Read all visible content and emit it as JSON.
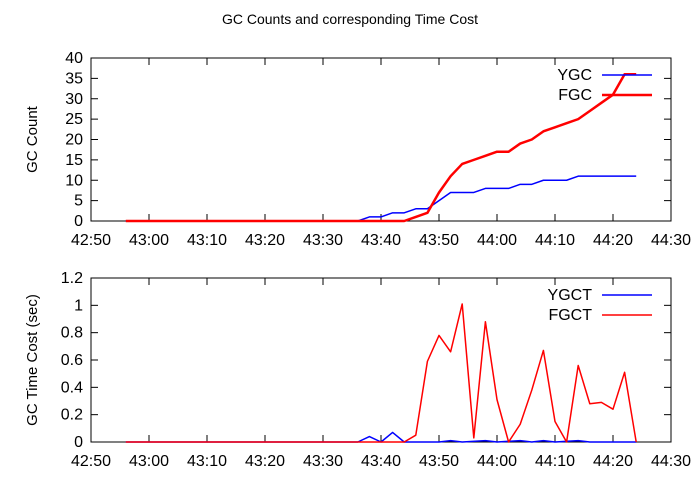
{
  "title": "GC Counts and corresponding Time Cost",
  "colors": {
    "young": "#0000ff",
    "full": "#ff0000",
    "axis": "#000000",
    "background": "#ffffff"
  },
  "chart_data": [
    {
      "type": "line",
      "ylabel": "GC Count",
      "xlabel": "",
      "xlim": [
        "42:50",
        "44:30"
      ],
      "ylim": [
        0,
        40
      ],
      "grid": false,
      "legend_position": "top-right",
      "x_ticks": [
        "42:50",
        "43:00",
        "43:10",
        "43:20",
        "43:30",
        "43:40",
        "43:50",
        "44:00",
        "44:10",
        "44:20",
        "44:30"
      ],
      "y_ticks": [
        "0",
        "5",
        "10",
        "15",
        "20",
        "25",
        "30",
        "35",
        "40"
      ],
      "series": [
        {
          "name": "YGC",
          "color": "#0000ff",
          "points": [
            [
              "42:56",
              0
            ],
            [
              "43:36",
              0
            ],
            [
              "43:38",
              1
            ],
            [
              "43:40",
              1
            ],
            [
              "43:42",
              2
            ],
            [
              "43:44",
              2
            ],
            [
              "43:46",
              3
            ],
            [
              "43:48",
              3
            ],
            [
              "43:50",
              5
            ],
            [
              "43:52",
              7
            ],
            [
              "43:56",
              7
            ],
            [
              "43:58",
              8
            ],
            [
              "44:02",
              8
            ],
            [
              "44:04",
              9
            ],
            [
              "44:06",
              9
            ],
            [
              "44:08",
              10
            ],
            [
              "44:12",
              10
            ],
            [
              "44:14",
              11
            ],
            [
              "44:24",
              11
            ]
          ]
        },
        {
          "name": "FGC",
          "color": "#ff0000",
          "points": [
            [
              "42:56",
              0
            ],
            [
              "43:44",
              0
            ],
            [
              "43:46",
              1
            ],
            [
              "43:48",
              2
            ],
            [
              "43:50",
              7
            ],
            [
              "43:52",
              11
            ],
            [
              "43:54",
              14
            ],
            [
              "43:56",
              15
            ],
            [
              "43:58",
              16
            ],
            [
              "44:00",
              17
            ],
            [
              "44:02",
              17
            ],
            [
              "44:04",
              19
            ],
            [
              "44:06",
              20
            ],
            [
              "44:08",
              22
            ],
            [
              "44:10",
              23
            ],
            [
              "44:12",
              24
            ],
            [
              "44:14",
              25
            ],
            [
              "44:16",
              27
            ],
            [
              "44:18",
              29
            ],
            [
              "44:20",
              31
            ],
            [
              "44:22",
              36
            ],
            [
              "44:24",
              36
            ]
          ]
        }
      ]
    },
    {
      "type": "line",
      "ylabel": "GC Time Cost (sec)",
      "xlabel": "",
      "xlim": [
        "42:50",
        "44:30"
      ],
      "ylim": [
        0,
        1.2
      ],
      "grid": false,
      "legend_position": "top-right",
      "x_ticks": [
        "42:50",
        "43:00",
        "43:10",
        "43:20",
        "43:30",
        "43:40",
        "43:50",
        "44:00",
        "44:10",
        "44:20",
        "44:30"
      ],
      "y_ticks": [
        "0",
        "0.2",
        "0.4",
        "0.6",
        "0.8",
        "1",
        "1.2"
      ],
      "series": [
        {
          "name": "YGCT",
          "color": "#0000ff",
          "points": [
            [
              "42:56",
              0
            ],
            [
              "43:36",
              0
            ],
            [
              "43:38",
              0.04
            ],
            [
              "43:40",
              0.0
            ],
            [
              "43:42",
              0.07
            ],
            [
              "43:44",
              0.0
            ],
            [
              "43:46",
              0.0
            ],
            [
              "43:48",
              0.0
            ],
            [
              "43:50",
              0.0
            ],
            [
              "43:52",
              0.01
            ],
            [
              "43:54",
              0.0
            ],
            [
              "43:58",
              0.01
            ],
            [
              "44:00",
              0.0
            ],
            [
              "44:04",
              0.01
            ],
            [
              "44:06",
              0.0
            ],
            [
              "44:08",
              0.01
            ],
            [
              "44:10",
              0.0
            ],
            [
              "44:14",
              0.01
            ],
            [
              "44:16",
              0.0
            ],
            [
              "44:24",
              0.0
            ]
          ]
        },
        {
          "name": "FGCT",
          "color": "#ff0000",
          "points": [
            [
              "42:56",
              0
            ],
            [
              "43:44",
              0
            ],
            [
              "43:46",
              0.05
            ],
            [
              "43:48",
              0.59
            ],
            [
              "43:50",
              0.78
            ],
            [
              "43:52",
              0.66
            ],
            [
              "43:54",
              1.01
            ],
            [
              "43:56",
              0.03
            ],
            [
              "43:58",
              0.88
            ],
            [
              "44:00",
              0.31
            ],
            [
              "44:02",
              0.0
            ],
            [
              "44:04",
              0.13
            ],
            [
              "44:06",
              0.38
            ],
            [
              "44:08",
              0.67
            ],
            [
              "44:10",
              0.15
            ],
            [
              "44:12",
              0.0
            ],
            [
              "44:14",
              0.56
            ],
            [
              "44:16",
              0.28
            ],
            [
              "44:18",
              0.29
            ],
            [
              "44:20",
              0.24
            ],
            [
              "44:22",
              0.51
            ],
            [
              "44:24",
              0.0
            ]
          ]
        }
      ]
    }
  ]
}
